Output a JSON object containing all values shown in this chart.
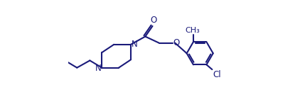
{
  "background_color": "#ffffff",
  "line_color": "#1a1a7a",
  "line_width": 1.5,
  "font_size": 8.5,
  "figsize": [
    4.29,
    1.37
  ],
  "dpi": 100,
  "xlim": [
    0.0,
    10.5
  ],
  "ylim": [
    2.5,
    8.5
  ]
}
